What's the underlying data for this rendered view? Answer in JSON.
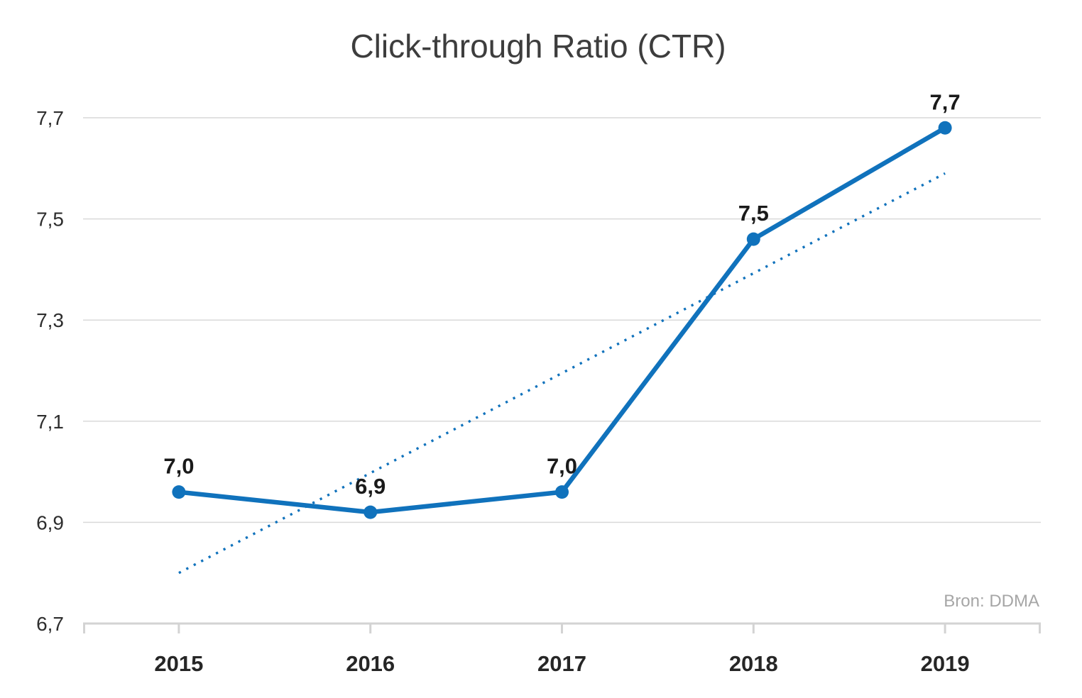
{
  "source": "Bron: DDMA",
  "chart_data": {
    "type": "line",
    "title": "Click-through Ratio (CTR)",
    "categories": [
      "2015",
      "2016",
      "2017",
      "2018",
      "2019"
    ],
    "series": [
      {
        "name": "CTR",
        "values": [
          6.96,
          6.92,
          6.96,
          7.46,
          7.68
        ],
        "point_labels": [
          "7,0",
          "6,9",
          "7,0",
          "7,5",
          "7,7"
        ]
      }
    ],
    "trendline": {
      "style": "dotted",
      "start_value": 6.8,
      "end_value": 7.59
    },
    "ylim": [
      6.7,
      7.7
    ],
    "yticks": [
      6.7,
      6.9,
      7.1,
      7.3,
      7.5,
      7.7
    ],
    "ytick_labels": [
      "6,7",
      "6,9",
      "7,1",
      "7,3",
      "7,5",
      "7,7"
    ],
    "xlabel": "",
    "ylabel": "",
    "grid": true,
    "legend": "none",
    "colors": {
      "line": "#1072bc",
      "trend": "#1072bc",
      "gridline": "#d9d9d9",
      "axis": "#d3d3d3",
      "title": "#3d3d3d",
      "data_label": "#1a1a1a",
      "tick_label": "#2e2e2e",
      "source": "#a6a6a6"
    }
  }
}
